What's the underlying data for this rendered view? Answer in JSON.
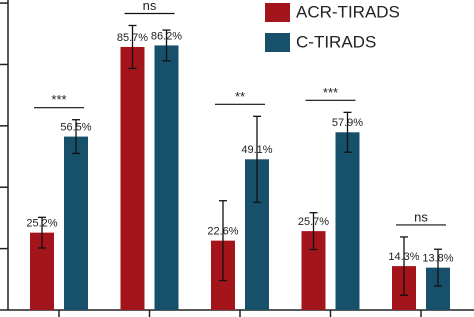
{
  "chart_data": {
    "type": "bar",
    "categories": [
      null,
      null,
      null,
      null,
      null
    ],
    "series": [
      {
        "name": "ACR-TIRADS",
        "color": "#a3141b",
        "values": [
          25.2,
          85.7,
          22.6,
          25.7,
          14.3
        ],
        "value_labels": [
          "25.2%",
          "85.7%",
          "22.6%",
          "25.7%",
          "14.3%"
        ],
        "errors": [
          5,
          7,
          13,
          6,
          9.5
        ]
      },
      {
        "name": "C-TIRADS",
        "color": "#17506b",
        "values": [
          56.5,
          86.2,
          49.1,
          57.9,
          13.8
        ],
        "value_labels": [
          "56.5%",
          "86.2%",
          "49.1%",
          "57.9%",
          "13.8%"
        ],
        "errors": [
          5.5,
          5,
          14,
          6.5,
          6
        ]
      }
    ],
    "annotations": [
      {
        "group": 0,
        "text": "***"
      },
      {
        "group": 1,
        "text": "ns"
      },
      {
        "group": 2,
        "text": "**"
      },
      {
        "group": 3,
        "text": "***"
      },
      {
        "group": 4,
        "text": "ns"
      }
    ],
    "ylim": [
      0,
      101
    ],
    "yticks": [
      0,
      20,
      40,
      60,
      80,
      100
    ],
    "legend": "top-right"
  }
}
